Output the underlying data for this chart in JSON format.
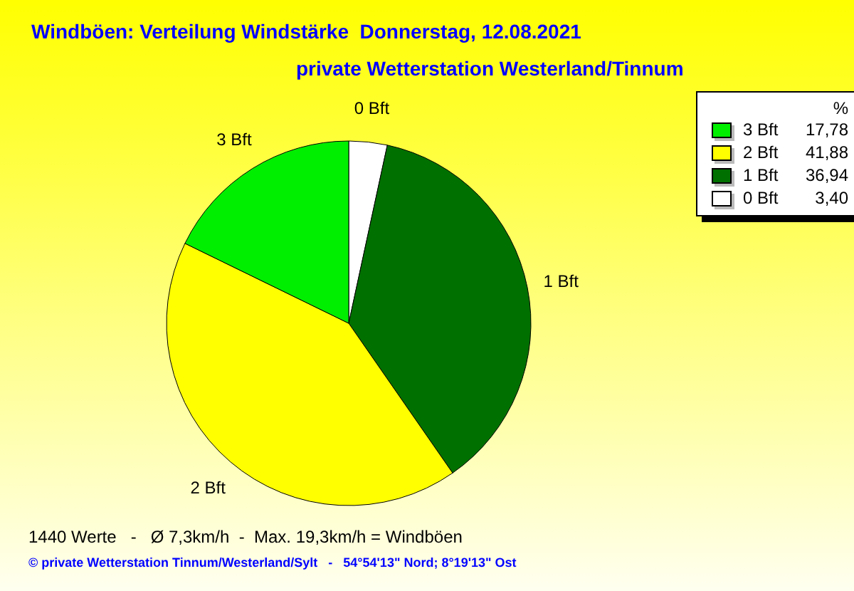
{
  "chart_data": {
    "type": "pie",
    "title": "Windböen: Verteilung Windstärke  Donnerstag, 12.08.2021",
    "subtitle": "private Wetterstation Westerland/Tinnum",
    "categories": [
      "0 Bft",
      "1 Bft",
      "2 Bft",
      "3 Bft"
    ],
    "values": [
      3.4,
      36.94,
      41.88,
      17.78
    ],
    "value_labels": [
      "3,40",
      "36,94",
      "41,88",
      "17,78"
    ],
    "colors": [
      "#ffffff",
      "#007000",
      "#ffff00",
      "#00ee00"
    ],
    "legend": "top right",
    "legend_title": "%",
    "annotations": [
      "1440 Werte   -   Ø 7,3km/h  -  Max. 19,3km/h = Windböen",
      "© private Wetterstation Tinnum/Westerland/Sylt   -   54°54'13\" Nord; 8°19'13\" Ost"
    ]
  }
}
